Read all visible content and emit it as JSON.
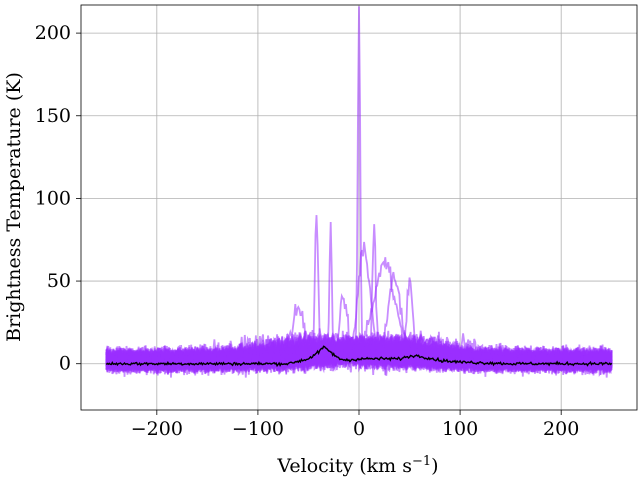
{
  "chart_data": {
    "type": "line",
    "title": "",
    "xlabel": "Velocity (km s",
    "xlabel_sup": "−1",
    "xlabel_end": ")",
    "ylabel": "Brightness Temperature (K)",
    "xlim": [
      -275,
      275
    ],
    "ylim": [
      -28,
      217
    ],
    "xticks": [
      -200,
      -100,
      0,
      100,
      200
    ],
    "xtick_labels": [
      "−200",
      "−100",
      "0",
      "100",
      "200"
    ],
    "yticks": [
      0,
      50,
      100,
      150,
      200
    ],
    "ytick_labels": [
      "0",
      "50",
      "100",
      "150",
      "200"
    ],
    "grid": true,
    "legend": "none",
    "velocity_range": [
      -250,
      250
    ],
    "noise_band": [
      -8,
      12
    ],
    "colors": {
      "spectra": "#9b30ff",
      "mean": "#000000",
      "grid": "#b0b0b0"
    },
    "series": [
      {
        "role": "spectra",
        "count": 60,
        "features": [
          {
            "center": 0,
            "peak": 205,
            "width": 1.2
          },
          {
            "center": -42,
            "peak": 87,
            "width": 1.6
          },
          {
            "center": -28,
            "peak": 75,
            "width": 1.2
          },
          {
            "center": 15,
            "peak": 71,
            "width": 1.5
          },
          {
            "center": 5,
            "peak": 64,
            "width": 6
          },
          {
            "center": 50,
            "peak": 46,
            "width": 3
          },
          {
            "center": -60,
            "peak": 29,
            "width": 6
          },
          {
            "center": 25,
            "peak": 55,
            "width": 10
          },
          {
            "center": -15,
            "peak": 30,
            "width": 4
          },
          {
            "center": 35,
            "peak": 40,
            "width": 5
          }
        ]
      },
      {
        "role": "mean",
        "x": [
          -250,
          -200,
          -150,
          -100,
          -70,
          -50,
          -40,
          -35,
          -30,
          -20,
          -10,
          0,
          20,
          40,
          55,
          65,
          80,
          100,
          150,
          200,
          250
        ],
        "y": [
          0,
          0,
          0,
          0,
          0,
          3,
          7,
          10,
          8,
          3,
          2,
          3,
          3,
          3,
          5,
          4,
          2,
          1,
          0,
          0,
          0
        ]
      }
    ]
  }
}
